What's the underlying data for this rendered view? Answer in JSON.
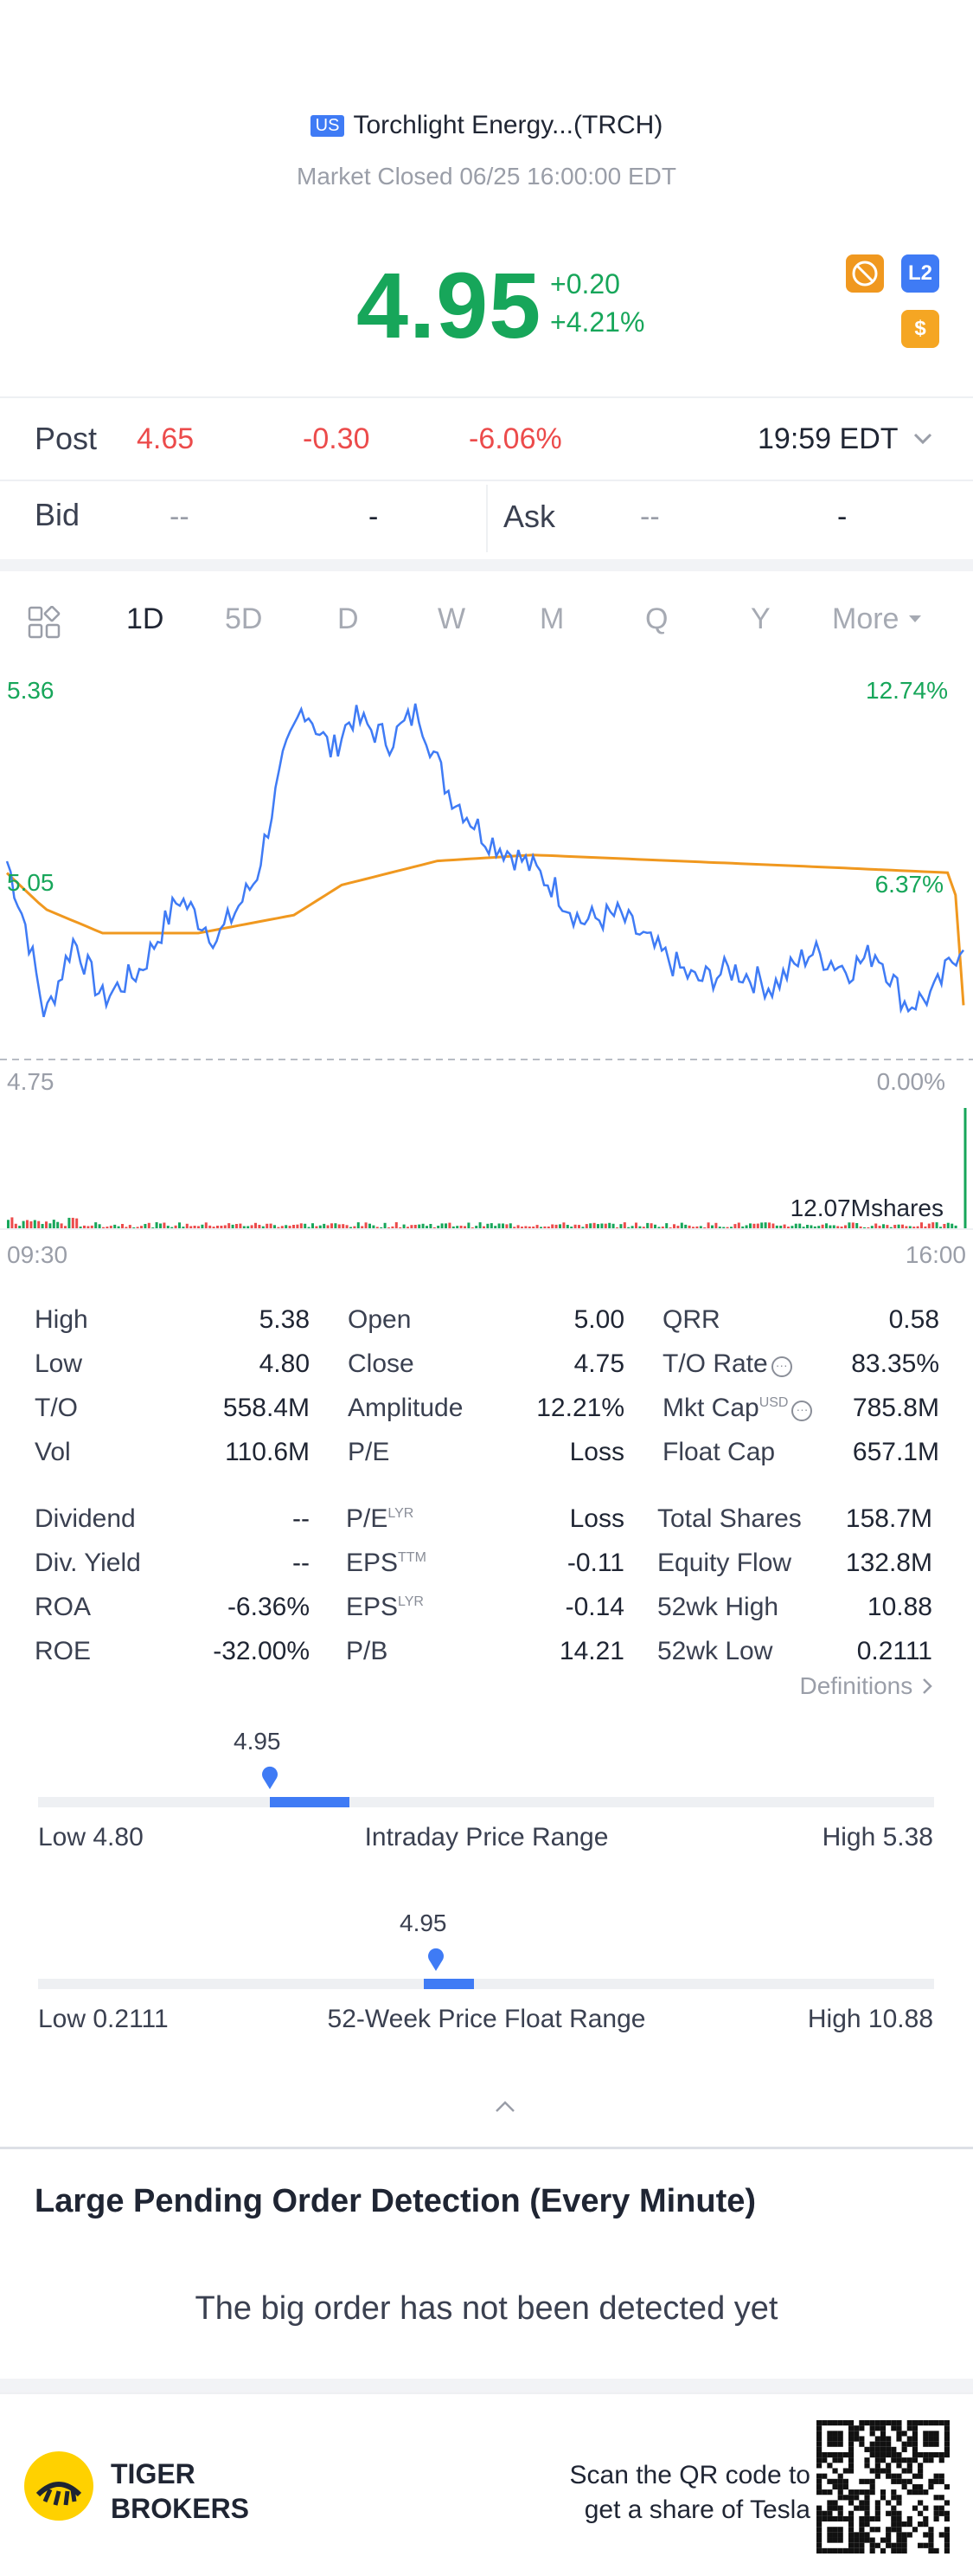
{
  "header": {
    "market_badge": "US",
    "title": "Torchlight Energy...(TRCH)",
    "status": "Market Closed 06/25 16:00:00 EDT"
  },
  "quote": {
    "price": "4.95",
    "change": "+0.20",
    "change_pct": "+4.21%",
    "icons": [
      "no-trade-icon",
      "l2-icon",
      "dollar-icon"
    ],
    "l2_label": "L2",
    "dollar_label": "$"
  },
  "post": {
    "label": "Post",
    "price": "4.65",
    "change": "-0.30",
    "change_pct": "-6.06%",
    "time": "19:59 EDT"
  },
  "bidask": {
    "bid_label": "Bid",
    "bid_price": "--",
    "bid_size": "-",
    "ask_label": "Ask",
    "ask_price": "--",
    "ask_size": "-"
  },
  "tabs": [
    "1D",
    "5D",
    "D",
    "W",
    "M",
    "Q",
    "Y",
    "More"
  ],
  "active_tab": "1D",
  "chart": {
    "y_top_left": "5.36",
    "y_top_right": "12.74%",
    "y_mid_left": "5.05",
    "y_mid_right": "6.37%",
    "y_bot_left": "4.75",
    "y_bot_right": "0.00%",
    "volume_label": "12.07Mshares",
    "x_start": "09:30",
    "x_end": "16:00",
    "colors": {
      "price": "#3f7bf5",
      "avg": "#f0981f",
      "up": "#17a65a",
      "down": "#ec4b4b"
    }
  },
  "stats": {
    "col1": [
      {
        "label": "High",
        "value": "5.38"
      },
      {
        "label": "Low",
        "value": "4.80"
      },
      {
        "label": "T/O",
        "value": "558.4M"
      },
      {
        "label": "Vol",
        "value": "110.6M"
      }
    ],
    "col2": [
      {
        "label": "Open",
        "value": "5.00"
      },
      {
        "label": "Close",
        "value": "4.75"
      },
      {
        "label": "Amplitude",
        "value": "12.21%"
      },
      {
        "label": "P/E",
        "value": "Loss"
      }
    ],
    "col3": [
      {
        "label": "QRR",
        "value": "0.58"
      },
      {
        "label": "T/O Rate",
        "value": "83.35%"
      },
      {
        "label": "Mkt Cap",
        "sup": "USD",
        "value": "785.8M"
      },
      {
        "label": "Float Cap",
        "value": "657.1M"
      }
    ],
    "col1b": [
      {
        "label": "Dividend",
        "value": "--"
      },
      {
        "label": "Div. Yield",
        "value": "--"
      },
      {
        "label": "ROA",
        "value": "-6.36%"
      },
      {
        "label": "ROE",
        "value": "-32.00%"
      }
    ],
    "col2b": [
      {
        "label": "P/E",
        "sup": "LYR",
        "value": "Loss"
      },
      {
        "label": "EPS",
        "sup": "TTM",
        "value": "-0.11"
      },
      {
        "label": "EPS",
        "sup": "LYR",
        "value": "-0.14"
      },
      {
        "label": "P/B",
        "value": "14.21"
      }
    ],
    "col3b": [
      {
        "label": "Total Shares",
        "value": "158.7M"
      },
      {
        "label": "Equity Flow",
        "value": "132.8M"
      },
      {
        "label": "52wk High",
        "value": "10.88"
      },
      {
        "label": "52wk Low",
        "value": "0.2111"
      }
    ],
    "definitions": "Definitions"
  },
  "intraday_range": {
    "current": "4.95",
    "low_label": "Low 4.80",
    "title": "Intraday Price Range",
    "high_label": "High 5.38",
    "low": 4.8,
    "high": 5.38,
    "value": 4.95
  },
  "week52_range": {
    "current": "4.95",
    "low_label": "Low 0.2111",
    "title": "52-Week Price Float Range",
    "high_label": "High 10.88",
    "low": 0.2111,
    "high": 10.88,
    "value": 4.95
  },
  "pending": {
    "title": "Large Pending Order Detection (Every Minute)",
    "empty": "The big order has not been detected yet"
  },
  "footer": {
    "brand_line1": "TIGER",
    "brand_line2": "BROKERS",
    "promo_line1": "Scan the QR code to",
    "promo_line2": "get a share of Tesla"
  }
}
